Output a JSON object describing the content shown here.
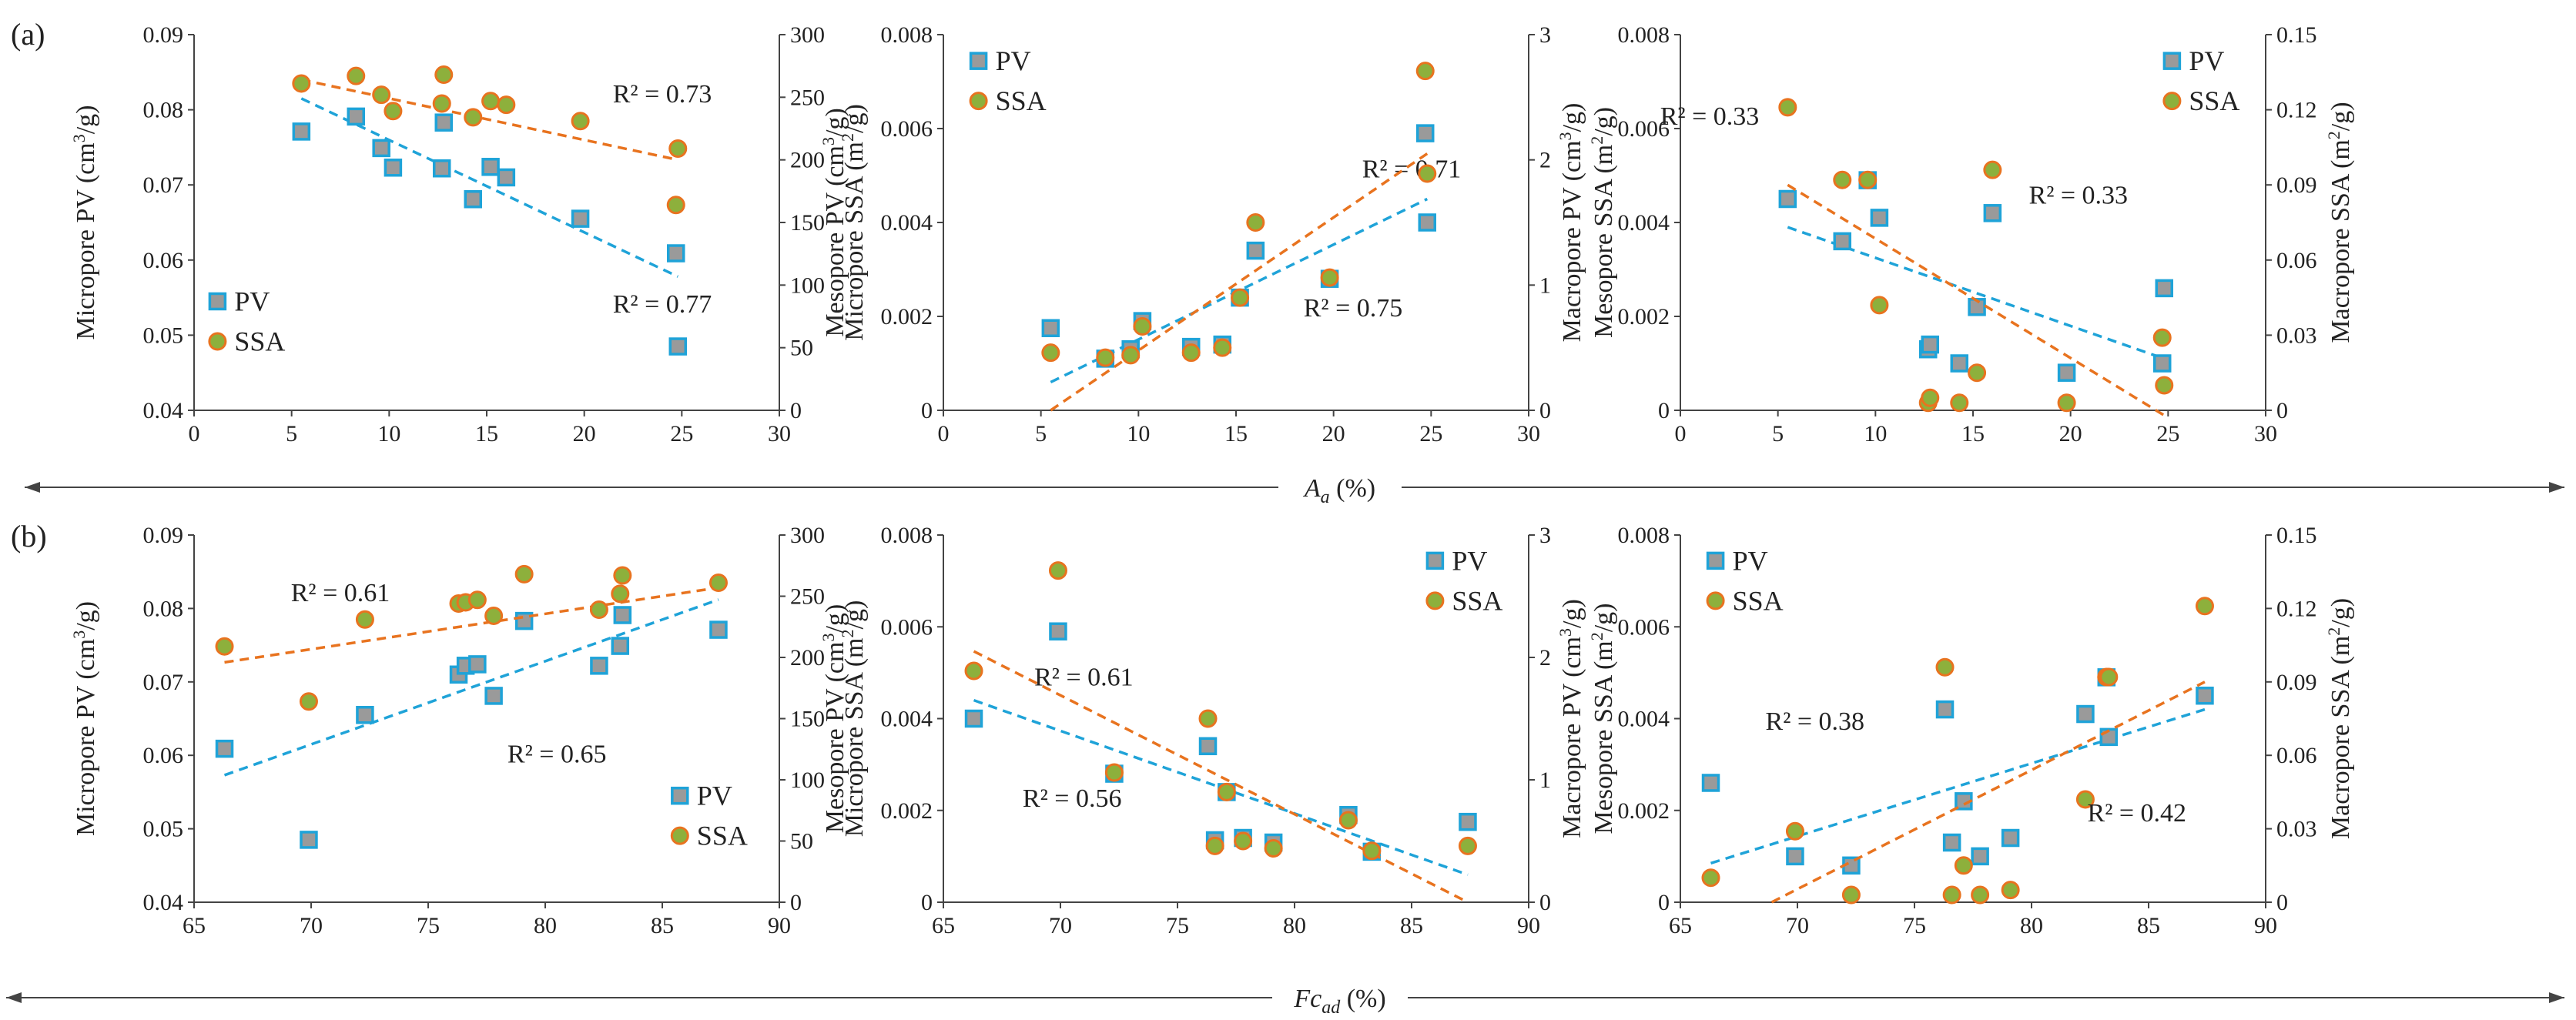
{
  "figure": {
    "panel_tags": [
      "(a)",
      "(b)"
    ],
    "row_axes": [
      {
        "label": "A",
        "subscript": "a",
        "unit": " (%)"
      },
      {
        "label": "Fc",
        "subscript": "ad",
        "unit": " (%)"
      }
    ],
    "colors": {
      "pv": "#1fa3d8",
      "pv_fill": "#9a9a9a",
      "ssa": "#e8731f",
      "ssa_fill": "#8db03c",
      "axis": "#444444"
    }
  },
  "chart_data": [
    {
      "type": "scatter",
      "id": "a-micro",
      "row": 0,
      "col": 0,
      "xlim": [
        0,
        30
      ],
      "xticks": [
        0,
        5,
        10,
        15,
        20,
        25,
        30
      ],
      "ylabel": "Micropore PV (cm³/g)",
      "ylim": [
        0.04,
        0.09
      ],
      "yticks": [
        "0.04",
        "0.05",
        "0.06",
        "0.07",
        "0.08",
        "0.09"
      ],
      "y2label": "Micropore SSA (m²/g)",
      "y2lim": [
        0,
        300
      ],
      "y2ticks": [
        "0",
        "50",
        "100",
        "150",
        "200",
        "250",
        "300"
      ],
      "legend": {
        "pv": "PV",
        "ssa": "SSA",
        "loc": "bottom-left"
      },
      "series": [
        {
          "name": "PV",
          "axis": "left",
          "x": [
            5.5,
            8.3,
            9.6,
            10.2,
            12.7,
            12.8,
            14.3,
            15.2,
            16.0,
            19.8,
            24.7,
            24.8
          ],
          "y": [
            0.0771,
            0.0791,
            0.0749,
            0.0723,
            0.0722,
            0.0783,
            0.0681,
            0.0724,
            0.071,
            0.0655,
            0.0609,
            0.0485
          ],
          "fit": {
            "x": [
              5.5,
              24.8
            ],
            "y": [
              0.0815,
              0.0578
            ]
          },
          "r2": "R² = 0.77"
        },
        {
          "name": "SSA",
          "axis": "right",
          "x": [
            5.5,
            8.3,
            9.6,
            10.2,
            12.7,
            12.8,
            14.3,
            15.2,
            16.0,
            19.8,
            24.7,
            24.8
          ],
          "y": [
            261,
            267,
            252,
            239,
            245,
            268,
            234,
            247,
            244,
            231,
            164,
            209
          ],
          "fit": {
            "x": [
              5.5,
              24.8
            ],
            "y": [
              264,
              200
            ]
          },
          "r2": "R² = 0.73"
        }
      ]
    },
    {
      "type": "scatter",
      "id": "a-meso",
      "row": 0,
      "col": 1,
      "xlim": [
        0,
        30
      ],
      "xticks": [
        0,
        5,
        10,
        15,
        20,
        25,
        30
      ],
      "ylabel": "Mesopore PV (cm³/g)",
      "ylim": [
        0,
        0.008
      ],
      "yticks": [
        "0",
        "0.002",
        "0.004",
        "0.006",
        "0.008"
      ],
      "y2label": "Mesopore SSA (m²/g)",
      "y2lim": [
        0,
        3
      ],
      "y2ticks": [
        "0",
        "1",
        "2",
        "3"
      ],
      "legend": {
        "pv": "PV",
        "ssa": "SSA",
        "loc": "top-left"
      },
      "series": [
        {
          "name": "PV",
          "axis": "left",
          "x": [
            5.5,
            8.3,
            9.6,
            10.2,
            12.7,
            14.3,
            15.2,
            16.0,
            19.8,
            24.7,
            24.8
          ],
          "y": [
            0.00175,
            0.0011,
            0.0013,
            0.0019,
            0.00135,
            0.0014,
            0.0024,
            0.0034,
            0.0028,
            0.0059,
            0.004
          ],
          "fit": {
            "x": [
              5.5,
              24.8
            ],
            "y": [
              0.0006,
              0.0045
            ]
          },
          "r2": "R² = 0.71"
        },
        {
          "name": "SSA",
          "axis": "right",
          "x": [
            5.5,
            8.3,
            9.6,
            10.2,
            12.7,
            14.3,
            15.2,
            16.0,
            19.8,
            24.7,
            24.8
          ],
          "y": [
            0.46,
            0.42,
            0.44,
            0.67,
            0.46,
            0.5,
            0.9,
            1.5,
            1.06,
            2.71,
            1.89
          ],
          "fit": {
            "x": [
              5.5,
              24.8
            ],
            "y": [
              0.0,
              2.05
            ]
          },
          "r2": "R² = 0.75"
        }
      ]
    },
    {
      "type": "scatter",
      "id": "a-macro",
      "row": 0,
      "col": 2,
      "xlim": [
        0,
        30
      ],
      "xticks": [
        0,
        5,
        10,
        15,
        20,
        25,
        30
      ],
      "ylabel": "Macropore PV (cm³/g)",
      "ylim": [
        0,
        0.008
      ],
      "yticks": [
        "0",
        "0.002",
        "0.004",
        "0.006",
        "0.008"
      ],
      "y2label": "Macropore SSA (m²/g)",
      "y2lim": [
        0,
        0.15
      ],
      "y2ticks": [
        "0",
        "0.03",
        "0.06",
        "0.09",
        "0.12",
        "0.15"
      ],
      "legend": {
        "pv": "PV",
        "ssa": "SSA",
        "loc": "top-right"
      },
      "series": [
        {
          "name": "PV",
          "axis": "left",
          "x": [
            5.5,
            8.3,
            9.6,
            10.2,
            12.7,
            12.8,
            14.3,
            15.2,
            16.0,
            19.8,
            24.7,
            24.8
          ],
          "y": [
            0.0045,
            0.0036,
            0.0049,
            0.0041,
            0.0013,
            0.0014,
            0.001,
            0.0022,
            0.0042,
            0.0008,
            0.001,
            0.0026
          ],
          "fit": {
            "x": [
              5.5,
              24.8
            ],
            "y": [
              0.0039,
              0.0011
            ]
          },
          "r2": "R² = 0.33"
        },
        {
          "name": "SSA",
          "axis": "right",
          "x": [
            5.5,
            8.3,
            9.6,
            10.2,
            12.7,
            12.8,
            14.3,
            15.2,
            16.0,
            19.8,
            24.7,
            24.8
          ],
          "y": [
            0.121,
            0.092,
            0.092,
            0.042,
            0.003,
            0.005,
            0.003,
            0.015,
            0.096,
            0.003,
            0.029,
            0.01
          ],
          "fit": {
            "x": [
              5.5,
              24.8
            ],
            "y": [
              0.09,
              -0.002
            ]
          },
          "r2": "R² = 0.33"
        }
      ]
    },
    {
      "type": "scatter",
      "id": "b-micro",
      "row": 1,
      "col": 0,
      "xlim": [
        65,
        90
      ],
      "xticks": [
        65,
        70,
        75,
        80,
        85,
        90
      ],
      "ylabel": "Micropore PV (cm³/g)",
      "ylim": [
        0.04,
        0.09
      ],
      "yticks": [
        "0.04",
        "0.05",
        "0.06",
        "0.07",
        "0.08",
        "0.09"
      ],
      "y2label": "Micropore SSA (m²/g)",
      "y2lim": [
        0,
        300
      ],
      "y2ticks": [
        "0",
        "50",
        "100",
        "150",
        "200",
        "250",
        "300"
      ],
      "legend": {
        "pv": "PV",
        "ssa": "SSA",
        "loc": "bottom-right"
      },
      "series": [
        {
          "name": "PV",
          "axis": "left",
          "x": [
            66.3,
            69.9,
            72.3,
            76.3,
            76.6,
            77.1,
            77.8,
            79.1,
            82.3,
            83.2,
            83.3,
            87.4
          ],
          "y": [
            0.0609,
            0.0485,
            0.0655,
            0.071,
            0.0722,
            0.0724,
            0.0681,
            0.0783,
            0.0722,
            0.0749,
            0.0791,
            0.0771
          ],
          "fit": {
            "x": [
              66.3,
              87.4
            ],
            "y": [
              0.0573,
              0.0812
            ]
          },
          "r2": "R² = 0.65"
        },
        {
          "name": "SSA",
          "axis": "right",
          "x": [
            66.3,
            69.9,
            72.3,
            76.3,
            76.6,
            77.1,
            77.8,
            79.1,
            82.3,
            83.2,
            83.3,
            87.4
          ],
          "y": [
            209,
            164,
            231,
            244,
            245,
            247,
            234,
            268,
            239,
            252,
            267,
            261
          ],
          "fit": {
            "x": [
              66.3,
              87.4
            ],
            "y": [
              196,
              257
            ]
          },
          "r2": "R² = 0.61"
        }
      ]
    },
    {
      "type": "scatter",
      "id": "b-meso",
      "row": 1,
      "col": 1,
      "xlim": [
        65,
        90
      ],
      "xticks": [
        65,
        70,
        75,
        80,
        85,
        90
      ],
      "ylabel": "Mesopore PV (cm³/g)",
      "ylim": [
        0,
        0.008
      ],
      "yticks": [
        "0",
        "0.002",
        "0.004",
        "0.006",
        "0.008"
      ],
      "y2label": "Mesopore SSA (m²/g)",
      "y2lim": [
        0,
        3
      ],
      "y2ticks": [
        "0",
        "1",
        "2",
        "3"
      ],
      "legend": {
        "pv": "PV",
        "ssa": "SSA",
        "loc": "top-right"
      },
      "series": [
        {
          "name": "PV",
          "axis": "left",
          "x": [
            66.3,
            69.9,
            72.3,
            76.3,
            76.6,
            77.1,
            77.8,
            79.1,
            82.3,
            83.3,
            87.4
          ],
          "y": [
            0.004,
            0.0059,
            0.0028,
            0.0034,
            0.00135,
            0.0024,
            0.0014,
            0.0013,
            0.0019,
            0.0011,
            0.00175
          ],
          "fit": {
            "x": [
              66.3,
              87.4
            ],
            "y": [
              0.0044,
              0.0006
            ]
          },
          "r2": "R² = 0.56"
        },
        {
          "name": "SSA",
          "axis": "right",
          "x": [
            66.3,
            69.9,
            72.3,
            76.3,
            76.6,
            77.1,
            77.8,
            79.1,
            82.3,
            83.3,
            87.4
          ],
          "y": [
            1.89,
            2.71,
            1.06,
            1.5,
            0.46,
            0.9,
            0.5,
            0.44,
            0.67,
            0.42,
            0.46
          ],
          "fit": {
            "x": [
              66.3,
              87.4
            ],
            "y": [
              2.05,
              0.0
            ]
          },
          "r2": "R² = 0.61"
        }
      ]
    },
    {
      "type": "scatter",
      "id": "b-macro",
      "row": 1,
      "col": 2,
      "xlim": [
        65,
        90
      ],
      "xticks": [
        65,
        70,
        75,
        80,
        85,
        90
      ],
      "ylabel": "Macropore PV (cm³/g)",
      "ylim": [
        0,
        0.008
      ],
      "yticks": [
        "0",
        "0.002",
        "0.004",
        "0.006",
        "0.008"
      ],
      "y2label": "Macropore SSA (m²/g)",
      "y2lim": [
        0,
        0.15
      ],
      "y2ticks": [
        "0",
        "0.03",
        "0.06",
        "0.09",
        "0.12",
        "0.15"
      ],
      "legend": {
        "pv": "PV",
        "ssa": "SSA",
        "loc": "top-left"
      },
      "series": [
        {
          "name": "PV",
          "axis": "left",
          "x": [
            66.3,
            69.9,
            72.3,
            76.3,
            76.6,
            77.1,
            77.8,
            79.1,
            82.3,
            83.2,
            83.3,
            87.4
          ],
          "y": [
            0.0026,
            0.001,
            0.0008,
            0.0042,
            0.0013,
            0.0022,
            0.001,
            0.0014,
            0.0041,
            0.0049,
            0.0036,
            0.0045
          ],
          "fit": {
            "x": [
              66.3,
              87.4
            ],
            "y": [
              0.00085,
              0.0042
            ]
          },
          "r2": "R² = 0.38"
        },
        {
          "name": "SSA",
          "axis": "right",
          "x": [
            66.3,
            69.9,
            72.3,
            76.3,
            76.6,
            77.1,
            77.8,
            79.1,
            82.3,
            83.2,
            83.3,
            87.4
          ],
          "y": [
            0.01,
            0.029,
            0.003,
            0.096,
            0.003,
            0.015,
            0.003,
            0.005,
            0.042,
            0.092,
            0.092,
            0.121
          ],
          "fit": {
            "x": [
              68.9,
              87.4
            ],
            "y": [
              0.0,
              0.09
            ]
          },
          "r2": "R² = 0.42"
        }
      ]
    }
  ]
}
